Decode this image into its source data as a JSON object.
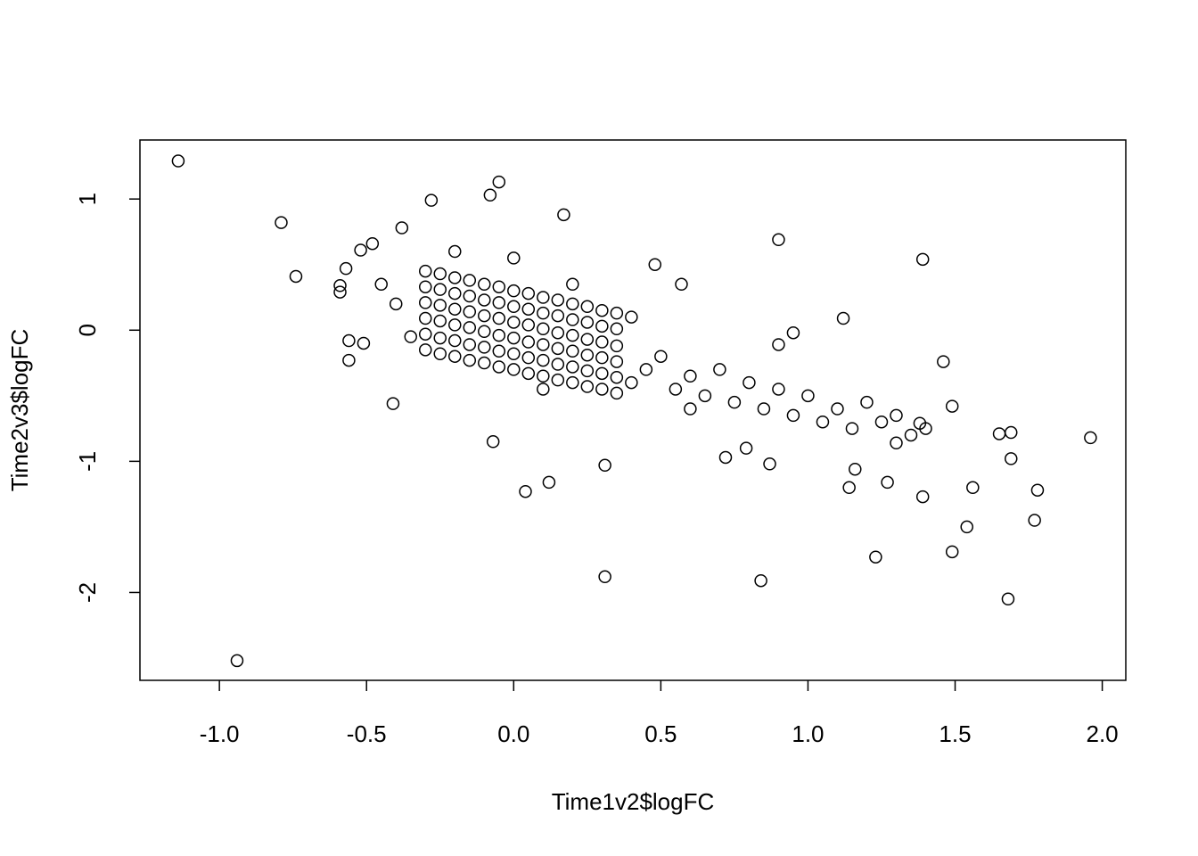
{
  "chart_data": {
    "type": "scatter",
    "x_label": "Time1v2$logFC",
    "y_label": "Time2v3$logFC",
    "xlim": [
      -1.27,
      2.08
    ],
    "ylim": [
      -2.67,
      1.45
    ],
    "xticks": [
      {
        "value": -1,
        "label": "-1.0"
      },
      {
        "value": -0.5,
        "label": "-0.5"
      },
      {
        "value": 0,
        "label": "0.0"
      },
      {
        "value": 0.5,
        "label": "0.5"
      },
      {
        "value": 1,
        "label": "1.0"
      },
      {
        "value": 1.5,
        "label": "1.5"
      },
      {
        "value": 2,
        "label": "2.0"
      }
    ],
    "yticks": [
      1,
      0,
      -1,
      -2
    ],
    "color": "#000000",
    "x": [
      -1.14,
      -0.94,
      -0.79,
      -0.74,
      -0.59,
      -0.59,
      -0.57,
      -0.56,
      -0.56,
      -0.52,
      -0.51,
      -0.48,
      -0.41,
      -0.38,
      -0.28,
      -0.08,
      -0.05,
      -0.07,
      0.04,
      0.12,
      0.17,
      0.31,
      0.31,
      0.48,
      0.57,
      0.9,
      1.12,
      1.39,
      0.84,
      1.23,
      1.49,
      1.68,
      1.77,
      1.78,
      1.96,
      1.69,
      1.65,
      1.69,
      1.54,
      1.56,
      1.39,
      1.46,
      1.49,
      1.27,
      1.14,
      1.16,
      0.87,
      0.79,
      0.72,
      0.95,
      0.9,
      1.38,
      1.3,
      -0.3,
      -0.3,
      -0.3,
      -0.3,
      -0.3,
      -0.3,
      -0.25,
      -0.25,
      -0.25,
      -0.25,
      -0.25,
      -0.25,
      -0.2,
      -0.2,
      -0.2,
      -0.2,
      -0.2,
      -0.2,
      -0.15,
      -0.15,
      -0.15,
      -0.15,
      -0.15,
      -0.15,
      -0.1,
      -0.1,
      -0.1,
      -0.1,
      -0.1,
      -0.1,
      -0.05,
      -0.05,
      -0.05,
      -0.05,
      -0.05,
      -0.05,
      0,
      0,
      0,
      0,
      0,
      0,
      0.05,
      0.05,
      0.05,
      0.05,
      0.05,
      0.05,
      0.1,
      0.1,
      0.1,
      0.1,
      0.1,
      0.1,
      0.15,
      0.15,
      0.15,
      0.15,
      0.15,
      0.15,
      0.2,
      0.2,
      0.2,
      0.2,
      0.2,
      0.2,
      0.25,
      0.25,
      0.25,
      0.25,
      0.25,
      0.25,
      0.3,
      0.3,
      0.3,
      0.3,
      0.3,
      0.3,
      0.35,
      0.35,
      0.35,
      0.35,
      0.35,
      0.35,
      0.55,
      0.6,
      0.65,
      0.7,
      0.75,
      0.8,
      0.85,
      0.9,
      0.95,
      1.0,
      1.05,
      1.1,
      1.15,
      1.2,
      1.25,
      1.3,
      1.35,
      1.4,
      0.45,
      0.5,
      0.4,
      0.6,
      -0.45,
      -0.4,
      -0.35,
      0.4,
      -0.2,
      0,
      0.2,
      0.1
    ],
    "y": [
      1.29,
      -2.52,
      0.82,
      0.41,
      0.29,
      0.34,
      0.47,
      -0.08,
      -0.23,
      0.61,
      -0.1,
      0.66,
      -0.56,
      0.78,
      0.99,
      1.03,
      1.13,
      -0.85,
      -1.23,
      -1.16,
      0.88,
      -1.88,
      -1.03,
      0.5,
      0.35,
      0.69,
      0.09,
      0.54,
      -1.91,
      -1.73,
      -1.69,
      -2.05,
      -1.45,
      -1.22,
      -0.82,
      -0.78,
      -0.79,
      -0.98,
      -1.5,
      -1.2,
      -1.27,
      -0.24,
      -0.58,
      -1.16,
      -1.2,
      -1.06,
      -1.02,
      -0.9,
      -0.97,
      -0.02,
      -0.11,
      -0.71,
      -0.86,
      -0.15,
      -0.03,
      0.09,
      0.21,
      0.33,
      0.45,
      -0.18,
      -0.06,
      0.07,
      0.19,
      0.31,
      0.43,
      -0.2,
      -0.08,
      0.04,
      0.16,
      0.28,
      0.4,
      -0.23,
      -0.11,
      0.02,
      0.14,
      0.26,
      0.38,
      -0.25,
      -0.13,
      -0.01,
      0.11,
      0.23,
      0.35,
      -0.28,
      -0.16,
      -0.04,
      0.09,
      0.21,
      0.33,
      -0.3,
      -0.18,
      -0.06,
      0.06,
      0.18,
      0.3,
      -0.33,
      -0.21,
      -0.09,
      0.04,
      0.16,
      0.28,
      -0.35,
      -0.23,
      -0.11,
      0.01,
      0.13,
      0.25,
      -0.38,
      -0.26,
      -0.14,
      -0.02,
      0.11,
      0.23,
      -0.4,
      -0.28,
      -0.16,
      -0.04,
      0.08,
      0.2,
      -0.43,
      -0.31,
      -0.19,
      -0.07,
      0.06,
      0.18,
      -0.45,
      -0.33,
      -0.21,
      -0.09,
      0.03,
      0.15,
      -0.48,
      -0.36,
      -0.24,
      -0.12,
      0.01,
      0.13,
      -0.45,
      -0.35,
      -0.5,
      -0.3,
      -0.55,
      -0.4,
      -0.6,
      -0.45,
      -0.65,
      -0.5,
      -0.7,
      -0.6,
      -0.75,
      -0.55,
      -0.7,
      -0.65,
      -0.8,
      -0.75,
      -0.3,
      -0.2,
      -0.4,
      -0.6,
      0.35,
      0.2,
      -0.05,
      0.1,
      0.6,
      0.55,
      0.35,
      -0.45
    ]
  }
}
